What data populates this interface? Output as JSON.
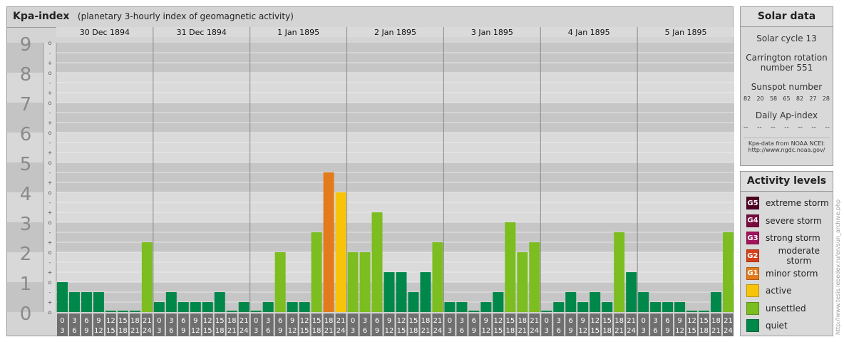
{
  "chart_title": {
    "main": "Kpa-index",
    "sub": "(planetary 3-hourly index of geomagnetic activity)"
  },
  "chart_data": {
    "type": "bar",
    "title": "Kpa-index",
    "subtitle": "(planetary 3-hourly index of geomagnetic activity)",
    "ylim": [
      0,
      9
    ],
    "y_ticks": [
      "0",
      "1",
      "2",
      "3",
      "4",
      "5",
      "6",
      "7",
      "8",
      "9"
    ],
    "y_subticks": [
      "o",
      "+",
      "-",
      "o",
      "+",
      "-",
      "o",
      "+",
      "-",
      "o",
      "+",
      "-",
      "o",
      "+",
      "-",
      "o",
      "+",
      "-",
      "o",
      "+",
      "-",
      "o",
      "+",
      "-",
      "o",
      "+",
      "-",
      "o"
    ],
    "days": [
      "30 Dec 1894",
      "31 Dec 1894",
      "1 Jan 1895",
      "2 Jan 1895",
      "3 Jan 1895",
      "4 Jan 1895",
      "5 Jan 1895"
    ],
    "hour_labels": [
      [
        "0",
        "3"
      ],
      [
        "3",
        "6"
      ],
      [
        "6",
        "9"
      ],
      [
        "9",
        "12"
      ],
      [
        "12",
        "15"
      ],
      [
        "15",
        "18"
      ],
      [
        "18",
        "21"
      ],
      [
        "21",
        "24"
      ]
    ],
    "values": [
      [
        1.0,
        0.667,
        0.667,
        0.667,
        0,
        0,
        0,
        2.333
      ],
      [
        0.333,
        0.667,
        0.333,
        0.333,
        0.333,
        0.667,
        0,
        0.333
      ],
      [
        0,
        0.333,
        2.0,
        0.333,
        0.333,
        2.667,
        4.667,
        4.0
      ],
      [
        2.0,
        2.0,
        3.333,
        1.333,
        1.333,
        0.667,
        1.333,
        2.333
      ],
      [
        0.333,
        0.333,
        0,
        0.333,
        0.667,
        3.0,
        2.0,
        2.333
      ],
      [
        0,
        0.333,
        0.667,
        0.333,
        0.667,
        0.333,
        2.667,
        1.333
      ],
      [
        0.667,
        0.333,
        0.333,
        0.333,
        0,
        0,
        0.667,
        2.667
      ]
    ],
    "colors": {
      "quiet": "#00874a",
      "unsettled": "#7cbd20",
      "active": "#f8c40a",
      "minor": "#e37b1c",
      "moderate": "#d6401a"
    }
  },
  "solar": {
    "title": "Solar data",
    "cycle": "Solar cycle 13",
    "carrington_1": "Carrington rotation",
    "carrington_2": "number 551",
    "sunspot_label": "Sunspot number",
    "sunspots": [
      "82",
      "20",
      "58",
      "65",
      "82",
      "27",
      "28"
    ],
    "ap_label": "Daily Ap-index",
    "ap_values": [
      "--",
      "--",
      "--",
      "--",
      "--",
      "--",
      "--"
    ],
    "source_1": "Kpa-data from NOAA NCEI:",
    "source_2": "http://www.ngdc.noaa.gov/"
  },
  "activity": {
    "title": "Activity levels",
    "levels": [
      {
        "code": "G5",
        "label": "extreme storm",
        "color": "#4e0022"
      },
      {
        "code": "G4",
        "label": "severe storm",
        "color": "#7a0a3e"
      },
      {
        "code": "G3",
        "label": "strong storm",
        "color": "#a3125a"
      },
      {
        "code": "G2",
        "label": "moderate storm",
        "color": "#d6401a"
      },
      {
        "code": "G1",
        "label": "minor storm",
        "color": "#e37b1c"
      },
      {
        "code": "",
        "label": "active",
        "color": "#f8c40a"
      },
      {
        "code": "",
        "label": "unsettled",
        "color": "#7cbd20"
      },
      {
        "code": "",
        "label": "quiet",
        "color": "#00874a"
      }
    ]
  },
  "watermark": "http://www.tesis.lebedev.ru/en/sun_archive.php"
}
